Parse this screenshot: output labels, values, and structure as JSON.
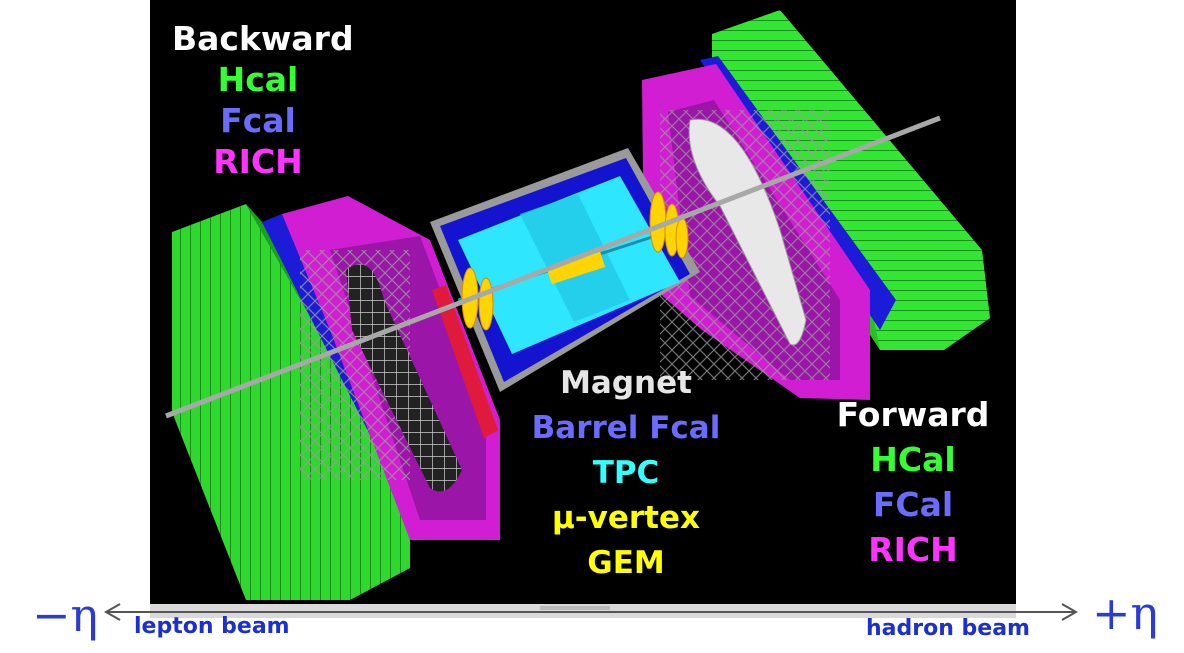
{
  "colors": {
    "background": "#000000",
    "white": "#ffffff",
    "green": "#33ff33",
    "blue": "#6b6bff",
    "magenta": "#ff33ff",
    "cyan": "#33ffff",
    "yellow": "#ffff00",
    "light_gray": "#e6e6e6",
    "eta_blue": "#2a3bd6"
  },
  "backward": {
    "title": "Backward",
    "items": [
      "Hcal",
      "Fcal",
      "RICH"
    ]
  },
  "center": {
    "items": [
      "Magnet",
      "Barrel Fcal",
      "TPC",
      "μ-vertex",
      "GEM"
    ]
  },
  "forward": {
    "title": "Forward",
    "items": [
      "HCal",
      "FCal",
      "RICH"
    ]
  },
  "axis": {
    "minus_eta": "−η",
    "plus_eta": "+η",
    "left_beam": "lepton beam",
    "right_beam": "hadron beam"
  }
}
